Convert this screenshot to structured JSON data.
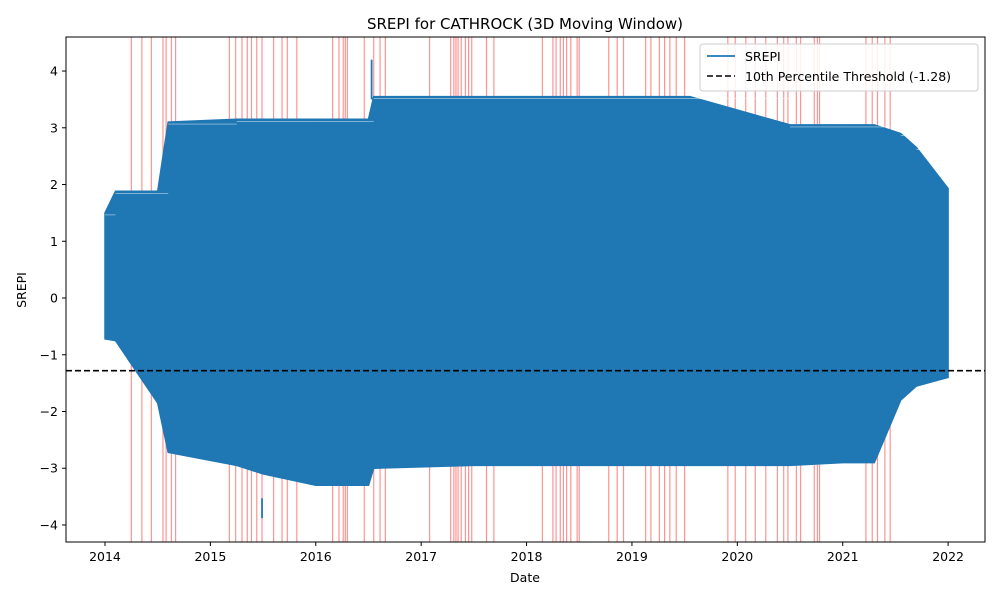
{
  "chart_data": {
    "type": "line",
    "title": "SREPI for CATHROCK (3D Moving Window)",
    "xlabel": "Date",
    "ylabel": "SREPI",
    "xlim": [
      2013.63,
      2022.35
    ],
    "ylim": [
      -4.3,
      4.6
    ],
    "x_ticks": [
      2014,
      2015,
      2016,
      2017,
      2018,
      2019,
      2020,
      2021,
      2022
    ],
    "x_tick_labels": [
      "2014",
      "2015",
      "2016",
      "2017",
      "2018",
      "2019",
      "2020",
      "2021",
      "2022"
    ],
    "y_ticks": [
      -4,
      -3,
      -2,
      -1,
      0,
      1,
      2,
      3,
      4
    ],
    "y_tick_labels": [
      "−4",
      "−3",
      "−2",
      "−1",
      "0",
      "1",
      "2",
      "3",
      "4"
    ],
    "grid": false,
    "legend": "top-right",
    "series": [
      {
        "name": "SREPI",
        "color": "#1f77b4",
        "envelope": {
          "x": [
            2014.0,
            2014.1,
            2014.5,
            2014.6,
            2015.25,
            2015.5,
            2016.0,
            2016.5,
            2016.55,
            2017.5,
            2018.0,
            2019.0,
            2019.55,
            2020.5,
            2021.0,
            2021.3,
            2021.55,
            2021.7,
            2022.0
          ],
          "upper": [
            1.5,
            1.88,
            1.88,
            3.1,
            3.15,
            3.15,
            3.15,
            3.15,
            3.55,
            3.55,
            3.55,
            3.55,
            3.55,
            3.05,
            3.05,
            3.05,
            2.9,
            2.65,
            1.93
          ],
          "lower": [
            -0.72,
            -0.75,
            -1.85,
            -2.72,
            -2.95,
            -3.1,
            -3.3,
            -3.3,
            -3.0,
            -2.95,
            -2.95,
            -2.95,
            -2.95,
            -2.95,
            -2.9,
            -2.9,
            -1.8,
            -1.55,
            -1.4
          ]
        },
        "spikes": [
          {
            "x": 2016.53,
            "y": 4.2
          },
          {
            "x": 2015.49,
            "y": -3.88
          }
        ]
      },
      {
        "name": "10th Percentile Threshold (-1.28)",
        "color": "#000000",
        "style": "dashed",
        "value": -1.28
      }
    ],
    "highlight_color": "#ff8080",
    "highlight_dates": [
      2014.25,
      2014.35,
      2014.44,
      2014.55,
      2014.58,
      2014.63,
      2014.67,
      2015.18,
      2015.24,
      2015.3,
      2015.35,
      2015.39,
      2015.44,
      2015.49,
      2015.6,
      2015.68,
      2015.73,
      2015.82,
      2016.16,
      2016.22,
      2016.26,
      2016.28,
      2016.3,
      2016.46,
      2016.55,
      2016.61,
      2016.66,
      2017.08,
      2017.28,
      2017.31,
      2017.33,
      2017.35,
      2017.38,
      2017.42,
      2017.45,
      2017.48,
      2017.62,
      2017.69,
      2018.15,
      2018.25,
      2018.28,
      2018.32,
      2018.35,
      2018.38,
      2018.42,
      2018.48,
      2018.5,
      2018.78,
      2018.86,
      2018.92,
      2019.13,
      2019.18,
      2019.26,
      2019.31,
      2019.36,
      2019.42,
      2019.5,
      2019.91,
      2019.98,
      2020.08,
      2020.17,
      2020.27,
      2020.38,
      2020.44,
      2020.48,
      2020.56,
      2020.6,
      2020.73,
      2020.76,
      2020.78,
      2021.22,
      2021.28,
      2021.33,
      2021.4,
      2021.45
    ]
  }
}
